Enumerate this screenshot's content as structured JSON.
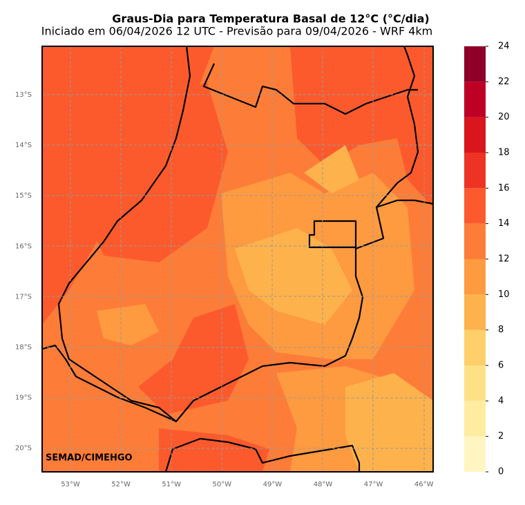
{
  "title": "Graus-Dia para Temperatura Basal de 12°C (°C/dia)",
  "subtitle": "Iniciado em 06/04/2026 12 UTC - Previsão para 09/04/2026 - WRF 4km",
  "credit": "SEMAD/CIMEHGO",
  "lat_labels": [
    "13°S",
    "14°S",
    "15°S",
    "16°S",
    "17°S",
    "18°S",
    "19°S",
    "20°S"
  ],
  "lon_labels": [
    "53°W",
    "52°W",
    "51°W",
    "50°W",
    "49°W",
    "48°W",
    "47°W",
    "46°W"
  ],
  "colorbar": {
    "ticks": [
      0,
      2,
      4,
      6,
      8,
      10,
      12,
      14,
      16,
      18,
      20,
      22,
      24
    ],
    "colors": [
      "#fff5c3",
      "#ffeca0",
      "#fee187",
      "#fecf6b",
      "#feb24c",
      "#fe9a40",
      "#fd7d38",
      "#fc5a2d",
      "#ee3324",
      "#d9151e",
      "#be0026",
      "#8e0028"
    ]
  }
}
